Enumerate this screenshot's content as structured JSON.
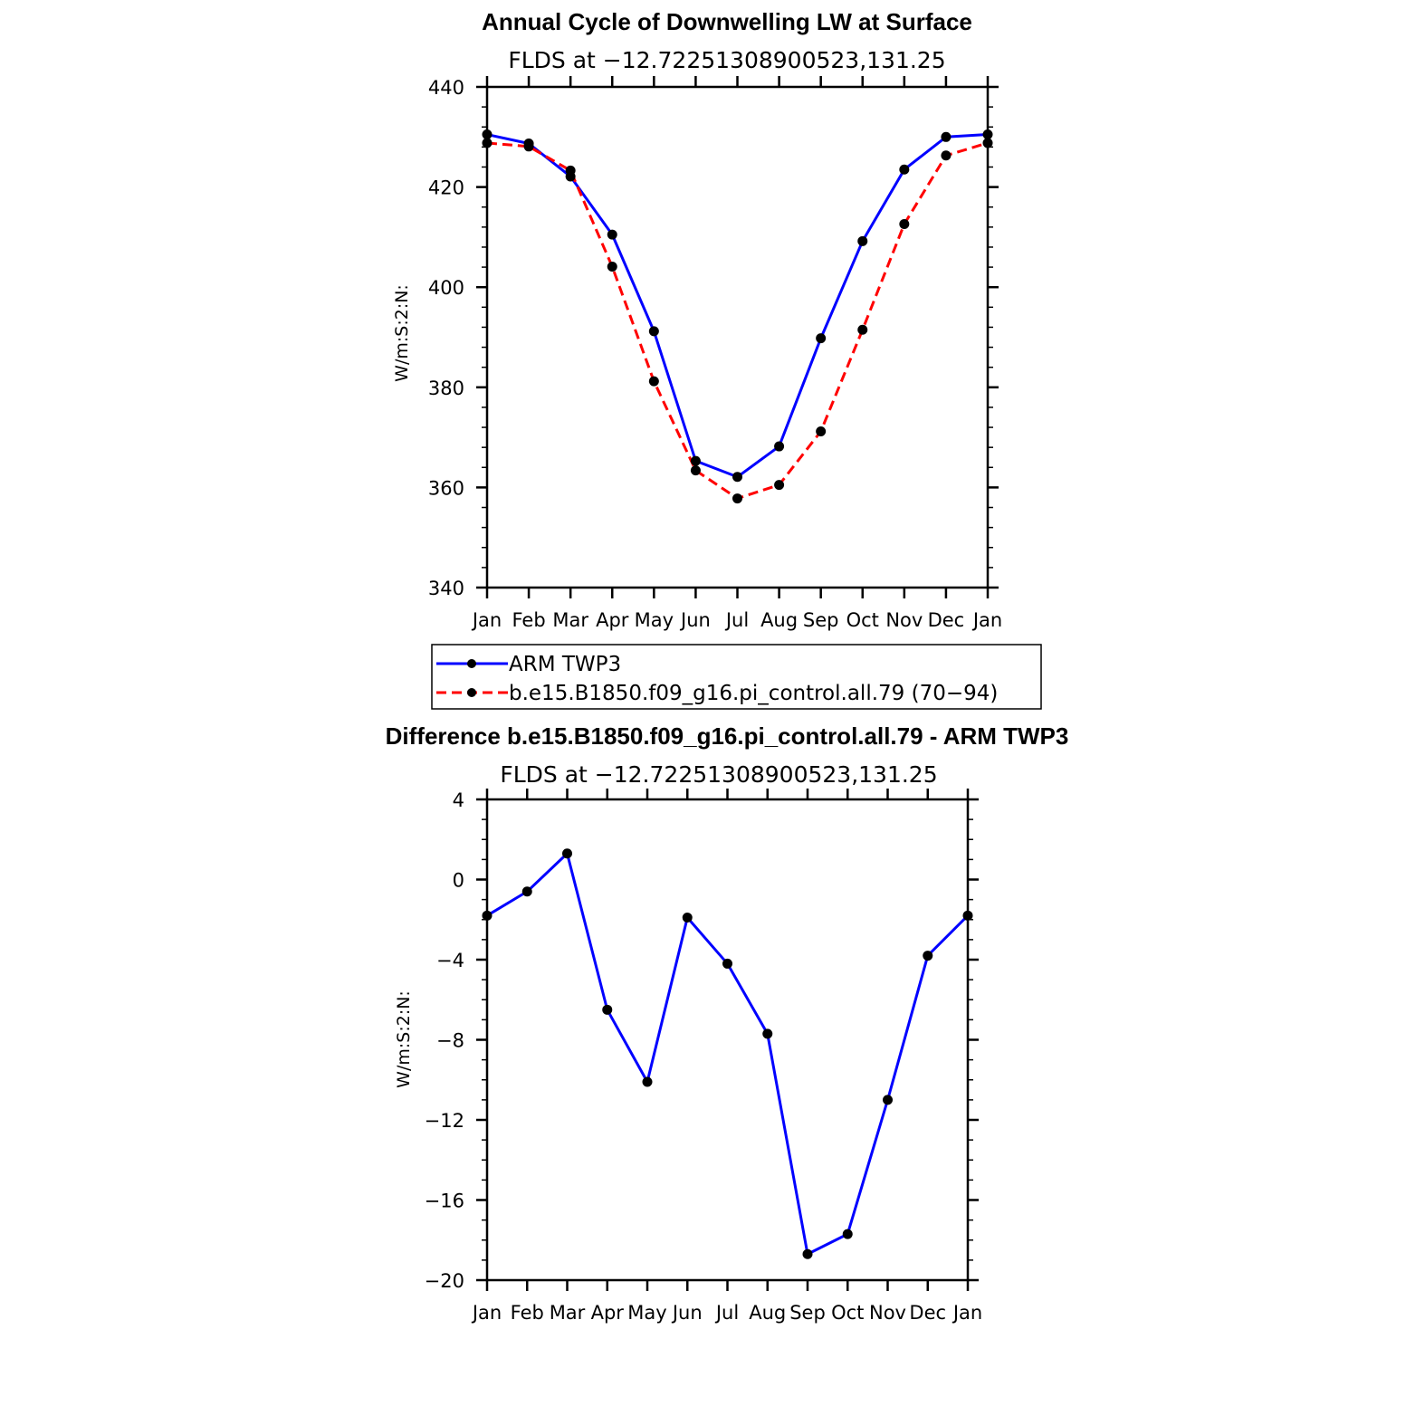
{
  "chart_data": [
    {
      "type": "line",
      "title": "Annual Cycle of Downwelling LW at Surface",
      "subtitle": "FLDS at −12.72251308900523,131.25",
      "ylabel": "W/m:S:2:N:",
      "ylim": [
        340,
        440
      ],
      "yticks": [
        "340",
        "360",
        "380",
        "400",
        "420",
        "440"
      ],
      "categories": [
        "Jan",
        "Feb",
        "Mar",
        "Apr",
        "May",
        "Jun",
        "Jul",
        "Aug",
        "Sep",
        "Oct",
        "Nov",
        "Dec",
        "Jan"
      ],
      "legend_placement": "below",
      "series": [
        {
          "name": "ARM TWP3",
          "color": "#0000ff",
          "dash": "solid",
          "values": [
            430.5,
            428.7,
            422.1,
            410.5,
            391.2,
            365.3,
            362.1,
            368.2,
            389.8,
            409.2,
            423.5,
            430.0,
            430.5
          ]
        },
        {
          "name": "b.e15.B1850.f09_g16.pi_control.all.79 (70−94)",
          "color": "#ff0000",
          "dash": "dashed",
          "values": [
            428.8,
            428.1,
            423.3,
            404.1,
            381.2,
            363.4,
            357.8,
            360.5,
            371.2,
            391.5,
            412.6,
            426.3,
            428.8
          ]
        }
      ]
    },
    {
      "type": "line",
      "title": "Difference b.e15.B1850.f09_g16.pi_control.all.79 - ARM TWP3",
      "subtitle": "FLDS at −12.72251308900523,131.25",
      "ylabel": "W/m:S:2:N:",
      "ylim": [
        -20,
        4
      ],
      "yticks": [
        "−20",
        "−16",
        "−12",
        "−8",
        "−4",
        "0",
        "4"
      ],
      "categories": [
        "Jan",
        "Feb",
        "Mar",
        "Apr",
        "May",
        "Jun",
        "Jul",
        "Aug",
        "Sep",
        "Oct",
        "Nov",
        "Dec",
        "Jan"
      ],
      "series": [
        {
          "color": "#0000ff",
          "dash": "solid",
          "values": [
            -1.8,
            -0.6,
            1.3,
            -6.5,
            -10.1,
            -1.9,
            -4.2,
            -7.7,
            -18.7,
            -17.7,
            -11.0,
            -3.8,
            -1.8
          ]
        }
      ]
    }
  ]
}
